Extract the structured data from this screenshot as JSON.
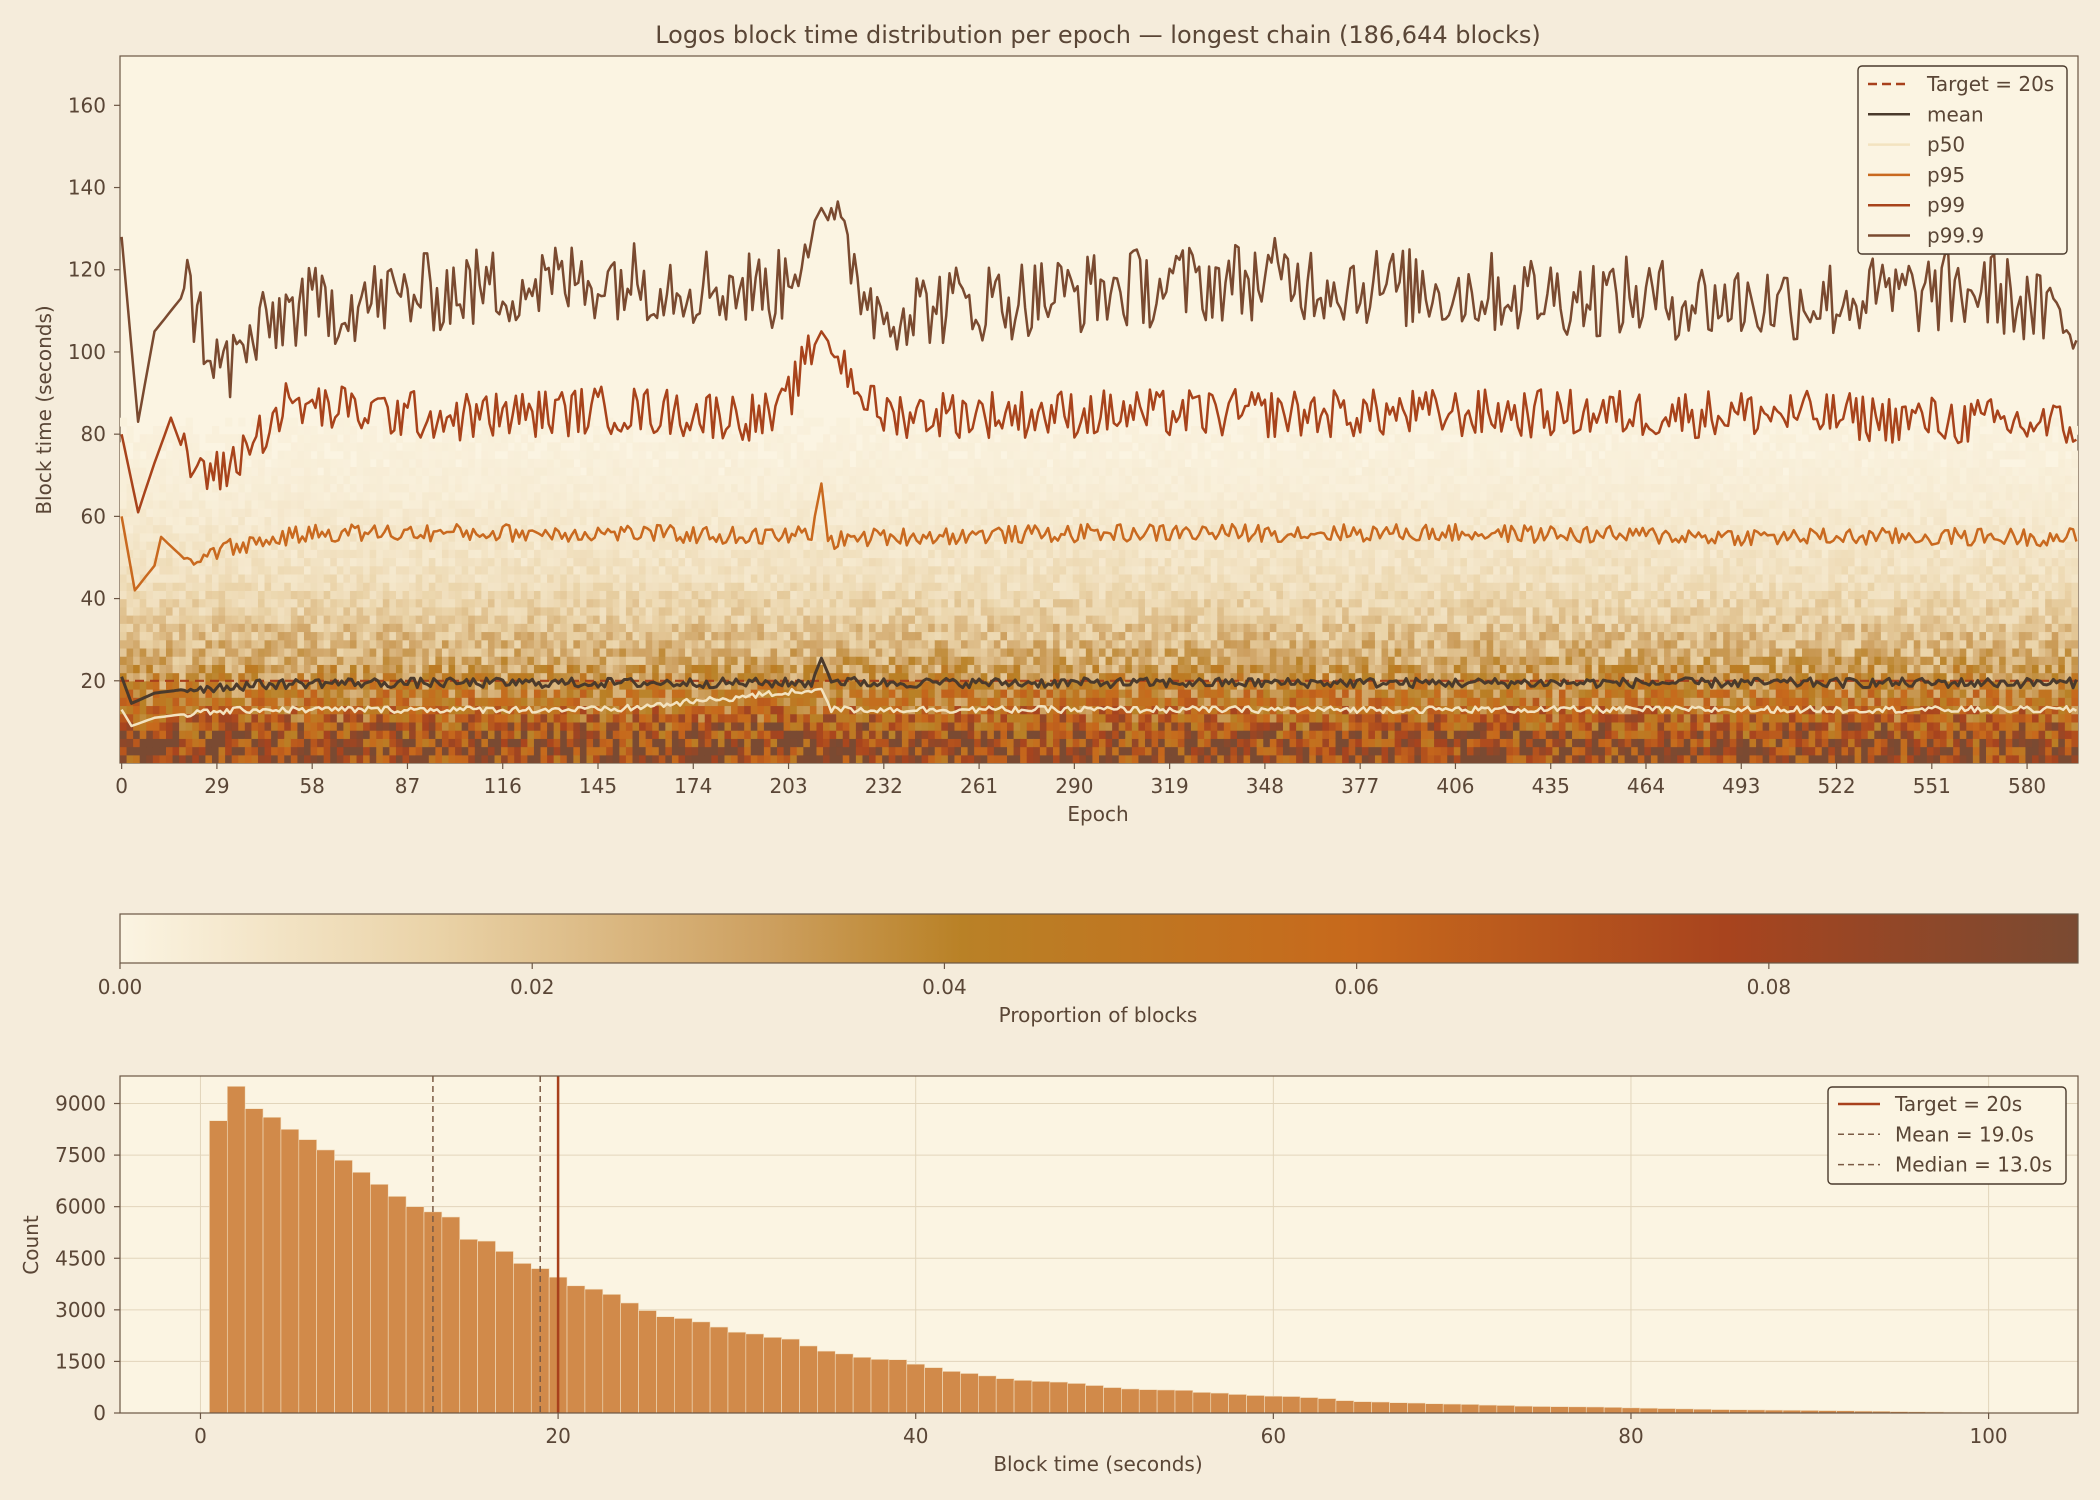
{
  "colors": {
    "figure_bg": "#f5ecdb",
    "axes_bg": "#fbf4e2",
    "text": "#5a4636",
    "target": "#a8401c",
    "mean": "#4a3a2c",
    "p50": "#f3e3c0",
    "p95": "#c9691f",
    "p99": "#a8431b",
    "p999": "#7a4a30",
    "bar": "#d18a4a",
    "colormap": [
      "#fbf4e2",
      "#ead3a8",
      "#cda060",
      "#b98126",
      "#c7691c",
      "#a8441e",
      "#7a4a32"
    ]
  },
  "chart_data": [
    {
      "type": "heatmap",
      "title": "Logos block time distribution per epoch — longest chain (186,644 blocks)",
      "xlabel": "Epoch",
      "ylabel": "Block time (seconds)",
      "xlim": [
        -0.5,
        595.5
      ],
      "ylim": [
        0,
        172
      ],
      "x_ticks": [
        0,
        29,
        58,
        87,
        116,
        145,
        174,
        203,
        232,
        261,
        290,
        319,
        348,
        377,
        406,
        435,
        464,
        493,
        522,
        551,
        580
      ],
      "y_ticks": [
        20,
        40,
        60,
        80,
        100,
        120,
        140,
        160
      ],
      "target_seconds": 20,
      "legend": {
        "placement": "top-right",
        "entries": [
          "Target = 20s",
          "mean",
          "p50",
          "p95",
          "p99",
          "p99.9"
        ]
      },
      "series_approx": [
        {
          "name": "mean",
          "epochs": [
            0,
            3,
            10,
            20,
            40,
            60,
            100,
            150,
            200,
            210,
            213,
            216,
            230,
            300,
            400,
            500,
            595
          ],
          "values": [
            21,
            14.5,
            17,
            18,
            19,
            19.5,
            19.5,
            19.5,
            19.5,
            19.5,
            25.5,
            20,
            19.5,
            19.5,
            19.5,
            19.5,
            19.5
          ]
        },
        {
          "name": "p50",
          "epochs": [
            0,
            3,
            10,
            20,
            40,
            60,
            150,
            213,
            216,
            300,
            400,
            500,
            595
          ],
          "values": [
            13,
            9,
            11,
            12,
            13,
            13,
            13,
            18,
            13,
            13,
            13,
            13,
            13
          ]
        },
        {
          "name": "p95",
          "epochs": [
            0,
            4,
            10,
            12,
            20,
            30,
            50,
            60,
            100,
            150,
            200,
            210,
            213,
            215,
            230,
            300,
            400,
            500,
            595
          ],
          "values": [
            60,
            42,
            48,
            55,
            49,
            52,
            55,
            56,
            56,
            56,
            55,
            56,
            68,
            54,
            55,
            56,
            56,
            55,
            55
          ]
        },
        {
          "name": "p99",
          "epochs": [
            0,
            5,
            10,
            15,
            20,
            30,
            50,
            100,
            150,
            200,
            213,
            230,
            300,
            400,
            500,
            595
          ],
          "values": [
            80,
            61,
            73,
            84,
            73,
            70,
            87,
            84,
            86,
            84,
            105,
            85,
            85,
            85,
            85,
            82
          ]
        },
        {
          "name": "p99.9",
          "epochs": [
            0,
            2,
            5,
            10,
            20,
            30,
            50,
            100,
            150,
            200,
            213,
            230,
            300,
            350,
            400,
            500,
            570,
            595
          ],
          "values": [
            128,
            110,
            83,
            105,
            115,
            95,
            110,
            115,
            118,
            115,
            135,
            110,
            115,
            118,
            115,
            112,
            115,
            105
          ]
        }
      ]
    },
    {
      "type": "colorbar",
      "xlabel": "Proportion of blocks",
      "range": [
        0,
        0.095
      ],
      "ticks": [
        "0.00",
        "0.02",
        "0.04",
        "0.06",
        "0.08"
      ]
    },
    {
      "type": "bar",
      "xlabel": "Block time (seconds)",
      "ylabel": "Count",
      "xlim": [
        -4.5,
        105
      ],
      "ylim": [
        0,
        9800
      ],
      "x_ticks": [
        0,
        20,
        40,
        60,
        80,
        100
      ],
      "y_ticks": [
        0,
        1500,
        3000,
        4500,
        6000,
        7500,
        9000
      ],
      "bin_start": 1,
      "bin_width": 1,
      "counts": [
        8500,
        9500,
        8850,
        8600,
        8250,
        7950,
        7650,
        7350,
        7000,
        6650,
        6300,
        6000,
        5850,
        5700,
        5050,
        5000,
        4700,
        4350,
        4200,
        3950,
        3700,
        3600,
        3450,
        3200,
        2980,
        2800,
        2750,
        2650,
        2500,
        2350,
        2300,
        2200,
        2150,
        1950,
        1800,
        1720,
        1620,
        1560,
        1550,
        1420,
        1320,
        1210,
        1150,
        1080,
        1000,
        950,
        920,
        900,
        860,
        800,
        740,
        700,
        680,
        670,
        660,
        600,
        580,
        540,
        510,
        490,
        480,
        450,
        420,
        360,
        330,
        320,
        300,
        290,
        270,
        260,
        250,
        230,
        220,
        200,
        190,
        185,
        180,
        175,
        165,
        150,
        140,
        130,
        120,
        110,
        100,
        95,
        90,
        85,
        80,
        75,
        70,
        65,
        55,
        50,
        40,
        35,
        30,
        25,
        20
      ],
      "reference_lines": [
        {
          "label": "Target = 20s",
          "value": 20,
          "style": "solid"
        },
        {
          "label": "Mean = 19.0s",
          "value": 19.0,
          "style": "dashed"
        },
        {
          "label": "Median = 13.0s",
          "value": 13.0,
          "style": "dashed"
        }
      ],
      "legend": {
        "placement": "top-right"
      }
    }
  ]
}
